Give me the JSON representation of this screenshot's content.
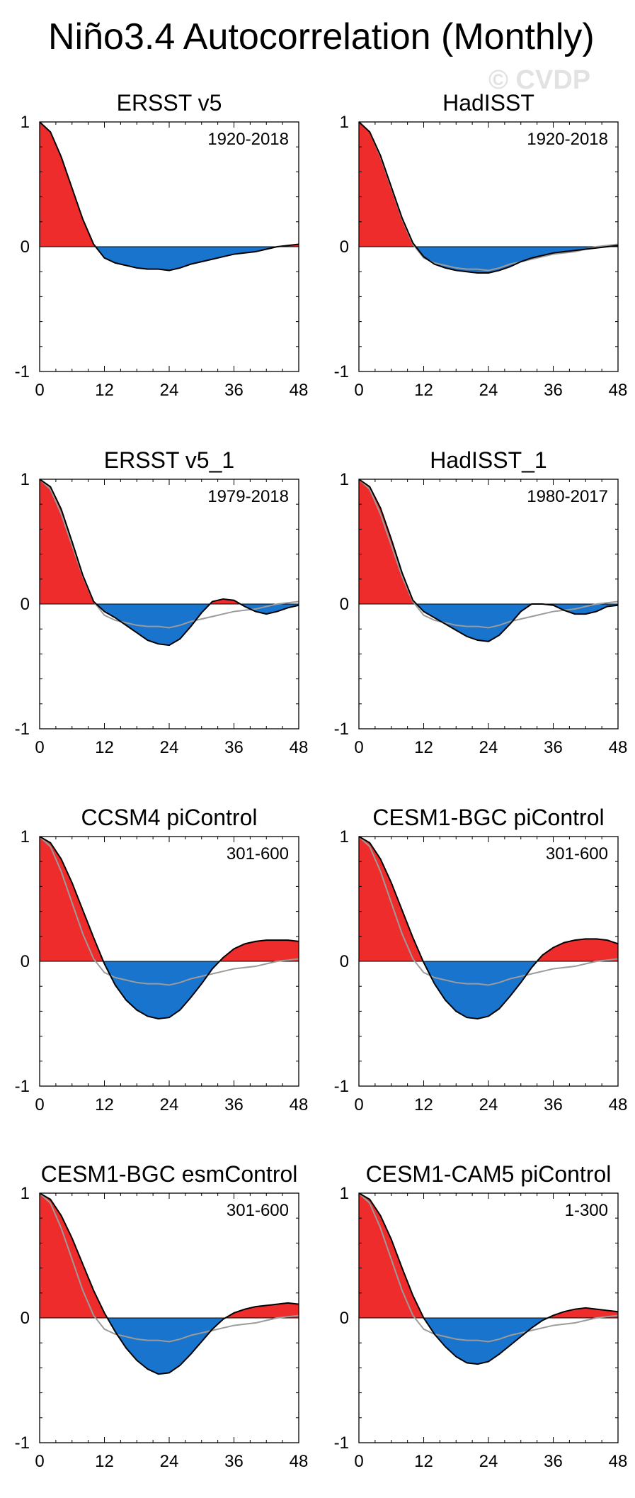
{
  "title": "Niño3.4 Autocorrelation (Monthly)",
  "watermark": "© CVDP",
  "colors": {
    "positive": "#ee2c2c",
    "negative": "#1874cd",
    "observed": "#9b9b9b",
    "line": "#000000"
  },
  "chart_data": [
    {
      "type": "area",
      "title": "ERSST v5",
      "period": "1920-2018",
      "xlabel": "",
      "ylabel": "",
      "xlim": [
        0,
        48
      ],
      "ylim": [
        -1,
        1
      ],
      "xticks": [
        0,
        12,
        24,
        36,
        48
      ],
      "yticks": [
        -1,
        0,
        1
      ],
      "ytick_labels": [
        "-1",
        "0",
        "1"
      ],
      "xtick_labels": [
        "0",
        "12",
        "24",
        "36",
        "48"
      ],
      "lag_step": 2,
      "series": [
        {
          "name": "ERSST v5",
          "values": [
            1.0,
            0.92,
            0.72,
            0.47,
            0.22,
            0.02,
            -0.09,
            -0.13,
            -0.15,
            -0.17,
            -0.18,
            -0.18,
            -0.19,
            -0.17,
            -0.14,
            -0.12,
            -0.1,
            -0.08,
            -0.06,
            -0.05,
            -0.04,
            -0.02,
            0.0,
            0.01,
            0.02
          ]
        }
      ]
    },
    {
      "type": "area",
      "title": "HadISST",
      "period": "1920-2018",
      "xlabel": "",
      "ylabel": "",
      "xlim": [
        0,
        48
      ],
      "ylim": [
        -1,
        1
      ],
      "xticks": [
        0,
        12,
        24,
        36,
        48
      ],
      "yticks": [
        -1,
        0,
        1
      ],
      "ytick_labels": [
        "-1",
        "0",
        "1"
      ],
      "xtick_labels": [
        "0",
        "12",
        "24",
        "36",
        "48"
      ],
      "lag_step": 2,
      "series": [
        {
          "name": "HadISST",
          "values": [
            1.0,
            0.92,
            0.73,
            0.48,
            0.23,
            0.03,
            -0.08,
            -0.14,
            -0.17,
            -0.19,
            -0.2,
            -0.21,
            -0.21,
            -0.19,
            -0.16,
            -0.12,
            -0.09,
            -0.07,
            -0.05,
            -0.04,
            -0.03,
            -0.02,
            -0.01,
            0.0,
            0.01
          ]
        },
        {
          "name": "ERSST v5",
          "values": [
            1.0,
            0.92,
            0.72,
            0.47,
            0.22,
            0.02,
            -0.09,
            -0.13,
            -0.15,
            -0.17,
            -0.18,
            -0.18,
            -0.19,
            -0.17,
            -0.14,
            -0.12,
            -0.1,
            -0.08,
            -0.06,
            -0.05,
            -0.04,
            -0.02,
            0.0,
            0.01,
            0.02
          ]
        }
      ]
    },
    {
      "type": "area",
      "title": "ERSST v5_1",
      "period": "1979-2018",
      "xlabel": "",
      "ylabel": "",
      "xlim": [
        0,
        48
      ],
      "ylim": [
        -1,
        1
      ],
      "xticks": [
        0,
        12,
        24,
        36,
        48
      ],
      "yticks": [
        -1,
        0,
        1
      ],
      "ytick_labels": [
        "-1",
        "0",
        "1"
      ],
      "xtick_labels": [
        "0",
        "12",
        "24",
        "36",
        "48"
      ],
      "lag_step": 2,
      "series": [
        {
          "name": "ERSST v5_1",
          "values": [
            1.0,
            0.94,
            0.76,
            0.5,
            0.23,
            0.02,
            -0.06,
            -0.11,
            -0.17,
            -0.23,
            -0.29,
            -0.32,
            -0.33,
            -0.28,
            -0.18,
            -0.07,
            0.02,
            0.04,
            0.03,
            -0.02,
            -0.06,
            -0.08,
            -0.06,
            -0.03,
            -0.01
          ]
        },
        {
          "name": "ERSST v5",
          "values": [
            1.0,
            0.92,
            0.72,
            0.47,
            0.22,
            0.02,
            -0.09,
            -0.13,
            -0.15,
            -0.17,
            -0.18,
            -0.18,
            -0.19,
            -0.17,
            -0.14,
            -0.12,
            -0.1,
            -0.08,
            -0.06,
            -0.05,
            -0.04,
            -0.02,
            0.0,
            0.01,
            0.02
          ]
        }
      ]
    },
    {
      "type": "area",
      "title": "HadISST_1",
      "period": "1980-2017",
      "xlabel": "",
      "ylabel": "",
      "xlim": [
        0,
        48
      ],
      "ylim": [
        -1,
        1
      ],
      "xticks": [
        0,
        12,
        24,
        36,
        48
      ],
      "yticks": [
        -1,
        0,
        1
      ],
      "ytick_labels": [
        "-1",
        "0",
        "1"
      ],
      "xtick_labels": [
        "0",
        "12",
        "24",
        "36",
        "48"
      ],
      "lag_step": 2,
      "series": [
        {
          "name": "HadISST_1",
          "values": [
            1.0,
            0.94,
            0.77,
            0.52,
            0.25,
            0.03,
            -0.06,
            -0.11,
            -0.16,
            -0.21,
            -0.26,
            -0.29,
            -0.3,
            -0.25,
            -0.16,
            -0.06,
            0.0,
            0.0,
            -0.01,
            -0.05,
            -0.08,
            -0.08,
            -0.06,
            -0.02,
            -0.01
          ]
        },
        {
          "name": "ERSST v5",
          "values": [
            1.0,
            0.92,
            0.72,
            0.47,
            0.22,
            0.02,
            -0.09,
            -0.13,
            -0.15,
            -0.17,
            -0.18,
            -0.18,
            -0.19,
            -0.17,
            -0.14,
            -0.12,
            -0.1,
            -0.08,
            -0.06,
            -0.05,
            -0.04,
            -0.02,
            0.0,
            0.01,
            0.02
          ]
        }
      ]
    },
    {
      "type": "area",
      "title": "CCSM4 piControl",
      "period": "301-600",
      "xlabel": "",
      "ylabel": "",
      "xlim": [
        0,
        48
      ],
      "ylim": [
        -1,
        1
      ],
      "xticks": [
        0,
        12,
        24,
        36,
        48
      ],
      "yticks": [
        -1,
        0,
        1
      ],
      "ytick_labels": [
        "-1",
        "0",
        "1"
      ],
      "xtick_labels": [
        "0",
        "12",
        "24",
        "36",
        "48"
      ],
      "lag_step": 2,
      "series": [
        {
          "name": "CCSM4 piControl",
          "values": [
            1.0,
            0.95,
            0.82,
            0.63,
            0.41,
            0.19,
            -0.02,
            -0.19,
            -0.31,
            -0.39,
            -0.44,
            -0.46,
            -0.45,
            -0.39,
            -0.29,
            -0.18,
            -0.06,
            0.03,
            0.1,
            0.14,
            0.16,
            0.17,
            0.17,
            0.17,
            0.16
          ]
        },
        {
          "name": "ERSST v5",
          "values": [
            1.0,
            0.92,
            0.72,
            0.47,
            0.22,
            0.02,
            -0.09,
            -0.13,
            -0.15,
            -0.17,
            -0.18,
            -0.18,
            -0.19,
            -0.17,
            -0.14,
            -0.12,
            -0.1,
            -0.08,
            -0.06,
            -0.05,
            -0.04,
            -0.02,
            0.0,
            0.01,
            0.02
          ]
        }
      ]
    },
    {
      "type": "area",
      "title": "CESM1-BGC piControl",
      "period": "301-600",
      "xlabel": "",
      "ylabel": "",
      "xlim": [
        0,
        48
      ],
      "ylim": [
        -1,
        1
      ],
      "xticks": [
        0,
        12,
        24,
        36,
        48
      ],
      "yticks": [
        -1,
        0,
        1
      ],
      "ytick_labels": [
        "-1",
        "0",
        "1"
      ],
      "xtick_labels": [
        "0",
        "12",
        "24",
        "36",
        "48"
      ],
      "lag_step": 2,
      "series": [
        {
          "name": "CESM1-BGC piControl",
          "values": [
            1.0,
            0.95,
            0.82,
            0.63,
            0.41,
            0.19,
            -0.01,
            -0.18,
            -0.31,
            -0.4,
            -0.45,
            -0.46,
            -0.44,
            -0.38,
            -0.28,
            -0.17,
            -0.05,
            0.05,
            0.11,
            0.15,
            0.17,
            0.18,
            0.18,
            0.17,
            0.14
          ]
        },
        {
          "name": "ERSST v5",
          "values": [
            1.0,
            0.92,
            0.72,
            0.47,
            0.22,
            0.02,
            -0.09,
            -0.13,
            -0.15,
            -0.17,
            -0.18,
            -0.18,
            -0.19,
            -0.17,
            -0.14,
            -0.12,
            -0.1,
            -0.08,
            -0.06,
            -0.05,
            -0.04,
            -0.02,
            0.0,
            0.01,
            0.02
          ]
        }
      ]
    },
    {
      "type": "area",
      "title": "CESM1-BGC esmControl",
      "period": "301-600",
      "xlabel": "",
      "ylabel": "",
      "xlim": [
        0,
        48
      ],
      "ylim": [
        -1,
        1
      ],
      "xticks": [
        0,
        12,
        24,
        36,
        48
      ],
      "yticks": [
        -1,
        0,
        1
      ],
      "ytick_labels": [
        "-1",
        "0",
        "1"
      ],
      "xtick_labels": [
        "0",
        "12",
        "24",
        "36",
        "48"
      ],
      "lag_step": 2,
      "series": [
        {
          "name": "CESM1-BGC esmControl",
          "values": [
            1.0,
            0.95,
            0.82,
            0.64,
            0.43,
            0.22,
            0.04,
            -0.11,
            -0.24,
            -0.34,
            -0.41,
            -0.45,
            -0.44,
            -0.38,
            -0.29,
            -0.19,
            -0.09,
            -0.01,
            0.04,
            0.07,
            0.09,
            0.1,
            0.11,
            0.12,
            0.11
          ]
        },
        {
          "name": "ERSST v5",
          "values": [
            1.0,
            0.92,
            0.72,
            0.47,
            0.22,
            0.02,
            -0.09,
            -0.13,
            -0.15,
            -0.17,
            -0.18,
            -0.18,
            -0.19,
            -0.17,
            -0.14,
            -0.12,
            -0.1,
            -0.08,
            -0.06,
            -0.05,
            -0.04,
            -0.02,
            0.0,
            0.01,
            0.02
          ]
        }
      ]
    },
    {
      "type": "area",
      "title": "CESM1-CAM5 piControl",
      "period": "1-300",
      "xlabel": "",
      "ylabel": "",
      "xlim": [
        0,
        48
      ],
      "ylim": [
        -1,
        1
      ],
      "xticks": [
        0,
        12,
        24,
        36,
        48
      ],
      "yticks": [
        -1,
        0,
        1
      ],
      "ytick_labels": [
        "-1",
        "0",
        "1"
      ],
      "xtick_labels": [
        "0",
        "12",
        "24",
        "36",
        "48"
      ],
      "lag_step": 2,
      "series": [
        {
          "name": "CESM1-CAM5 piControl",
          "values": [
            1.0,
            0.95,
            0.82,
            0.63,
            0.4,
            0.18,
            0.0,
            -0.13,
            -0.23,
            -0.31,
            -0.36,
            -0.37,
            -0.35,
            -0.29,
            -0.22,
            -0.15,
            -0.08,
            -0.02,
            0.02,
            0.05,
            0.07,
            0.08,
            0.07,
            0.06,
            0.05
          ]
        },
        {
          "name": "ERSST v5",
          "values": [
            1.0,
            0.92,
            0.72,
            0.47,
            0.22,
            0.02,
            -0.09,
            -0.13,
            -0.15,
            -0.17,
            -0.18,
            -0.18,
            -0.19,
            -0.17,
            -0.14,
            -0.12,
            -0.1,
            -0.08,
            -0.06,
            -0.05,
            -0.04,
            -0.02,
            0.0,
            0.01,
            0.02
          ]
        }
      ]
    }
  ]
}
